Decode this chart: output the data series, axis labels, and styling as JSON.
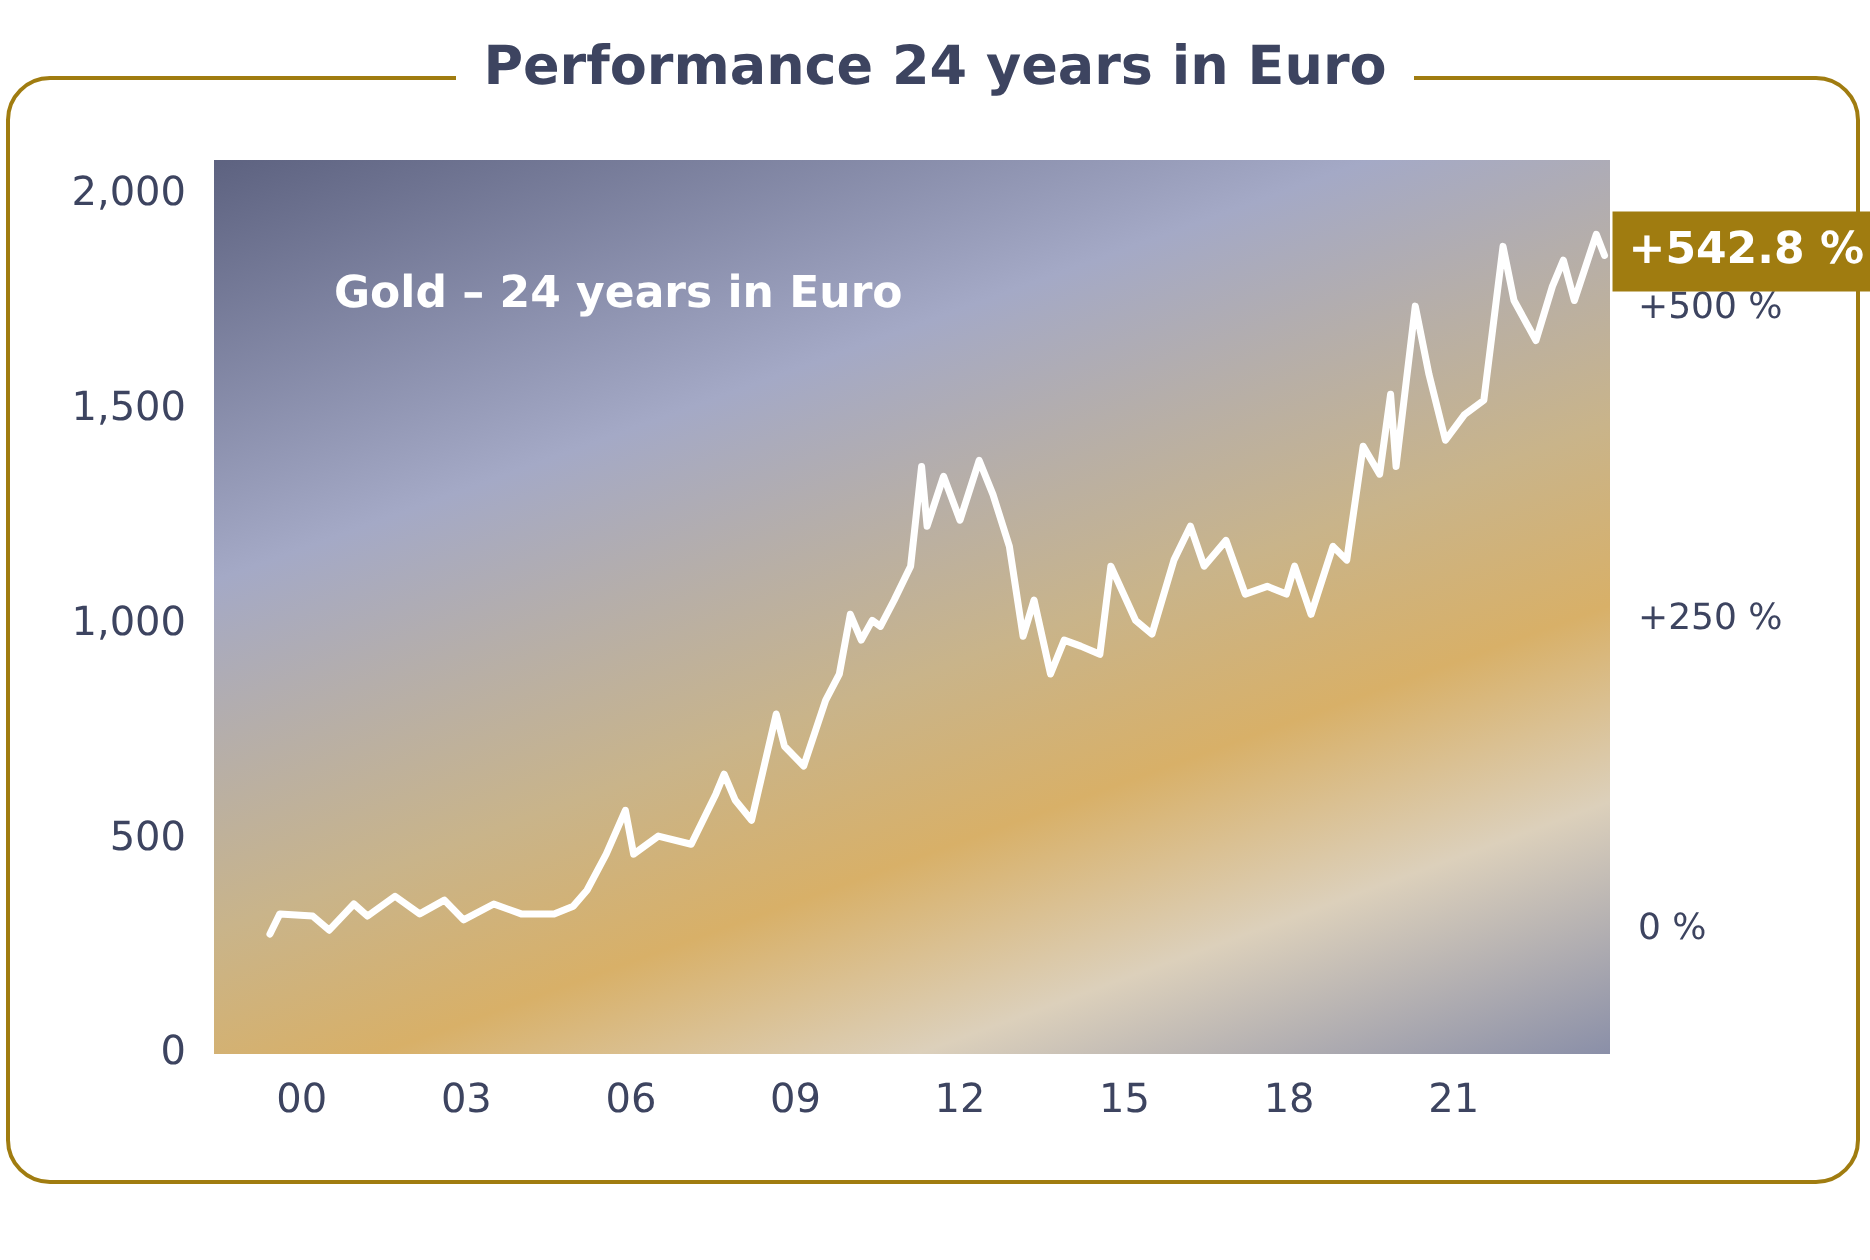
{
  "chart_data": {
    "type": "line",
    "title": "Performance 24 years in Euro",
    "x": [
      1999.42,
      1999.6,
      2000.2,
      2000.5,
      2000.95,
      2001.2,
      2001.7,
      2002.15,
      2002.6,
      2002.95,
      2003.5,
      2004.0,
      2004.6,
      2004.95,
      2005.2,
      2005.55,
      2005.9,
      2006.05,
      2006.5,
      2007.1,
      2007.55,
      2007.7,
      2007.9,
      2008.2,
      2008.65,
      2008.8,
      2009.15,
      2009.55,
      2009.8,
      2010.0,
      2010.2,
      2010.4,
      2010.55,
      2010.8,
      2011.1,
      2011.3,
      2011.4,
      2011.7,
      2012.0,
      2012.35,
      2012.6,
      2012.9,
      2013.15,
      2013.35,
      2013.65,
      2013.9,
      2014.2,
      2014.55,
      2014.75,
      2015.2,
      2015.5,
      2015.9,
      2016.2,
      2016.45,
      2016.85,
      2017.2,
      2017.6,
      2017.95,
      2018.1,
      2018.4,
      2018.8,
      2019.05,
      2019.35,
      2019.65,
      2019.85,
      2019.95,
      2020.3,
      2020.55,
      2020.85,
      2021.2,
      2021.55,
      2021.9,
      2022.1,
      2022.5,
      2022.8,
      2023.0,
      2023.2,
      2023.6,
      2023.75
    ],
    "series": [
      {
        "color": "#ffffff",
        "values": [
          279,
          326,
          321,
          288,
          349,
          321,
          367,
          326,
          358,
          312,
          349,
          326,
          326,
          344,
          381,
          465,
          567,
          465,
          507,
          488,
          605,
          651,
          591,
          544,
          791,
          716,
          670,
          823,
          884,
          1023,
          963,
          1009,
          995,
          1056,
          1135,
          1367,
          1228,
          1344,
          1242,
          1381,
          1302,
          1181,
          972,
          1056,
          884,
          963,
          949,
          930,
          1135,
          1009,
          977,
          1149,
          1228,
          1135,
          1195,
          1070,
          1088,
          1070,
          1135,
          1023,
          1181,
          1149,
          1414,
          1349,
          1535,
          1367,
          1740,
          1581,
          1428,
          1488,
          1521,
          1879,
          1753,
          1660,
          1786,
          1847,
          1753,
          1907,
          1858
        ]
      }
    ],
    "xlim": [
      1998.4,
      2023.85
    ],
    "xticks": [
      {
        "value": 2000,
        "label": "00"
      },
      {
        "value": 2003,
        "label": "03"
      },
      {
        "value": 2006,
        "label": "06"
      },
      {
        "value": 2009,
        "label": "09"
      },
      {
        "value": 2012,
        "label": "12"
      },
      {
        "value": 2015,
        "label": "15"
      },
      {
        "value": 2018,
        "label": "18"
      },
      {
        "value": 2021,
        "label": "21"
      }
    ],
    "ylim": [
      0,
      2080
    ],
    "yticks": [
      0,
      500,
      {
        "value": 1000,
        "label": "1,000"
      },
      {
        "value": 1500,
        "label": "1,500"
      },
      {
        "value": 2000,
        "label": "2,000"
      }
    ],
    "y2lim": [
      -100,
      620
    ],
    "y2ticks": [
      {
        "value": 0,
        "label": "0 %"
      },
      {
        "value": 250,
        "label": "+250 %"
      },
      {
        "value": 500,
        "label": "+500 %"
      }
    ],
    "annotations": [
      "Gold – 24 years in Euro",
      {
        "text": "+542.8 %",
        "x": 2023.75,
        "y": 1858
      }
    ],
    "grid": false,
    "legend": false,
    "marker": "none",
    "line_style": "solid"
  }
}
